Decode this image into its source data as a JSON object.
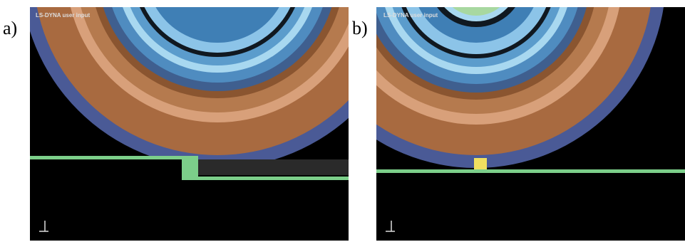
{
  "panels": [
    {
      "label": "a)",
      "header": "LS-DYNA user input"
    },
    {
      "label": "b)",
      "header": "LS-DYNA user input"
    }
  ]
}
